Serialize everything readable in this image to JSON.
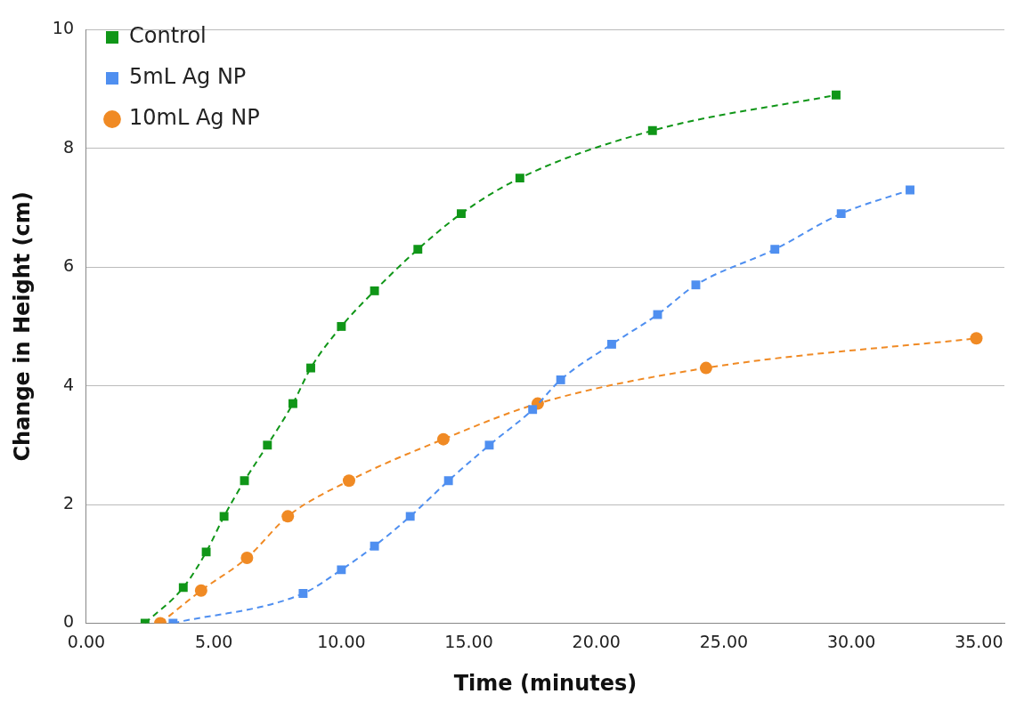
{
  "chart_data": {
    "type": "line",
    "xlabel": "Time (minutes)",
    "ylabel": "Change in Height (cm)",
    "xlim": [
      0,
      36
    ],
    "xticks": [
      {
        "value": 0,
        "label": "0.00"
      },
      {
        "value": 5,
        "label": "5.00"
      },
      {
        "value": 10,
        "label": "10.00"
      },
      {
        "value": 15,
        "label": "15.00"
      },
      {
        "value": 20,
        "label": "20.00"
      },
      {
        "value": 25,
        "label": "25.00"
      },
      {
        "value": 30,
        "label": "30.00"
      },
      {
        "value": 35,
        "label": "35.00"
      }
    ],
    "ylim": [
      0,
      10
    ],
    "yticks": [
      0,
      2,
      4,
      6,
      8,
      10
    ],
    "grid": "y",
    "legend": "top left",
    "line_style": "dashed",
    "series": [
      {
        "name": "Control",
        "color": "#109618",
        "marker": "square",
        "x": [
          2.3,
          3.8,
          4.7,
          5.4,
          6.2,
          7.1,
          8.1,
          8.8,
          10.0,
          11.3,
          13.0,
          14.7,
          17.0,
          22.2,
          29.4
        ],
        "values": [
          0,
          0.6,
          1.2,
          1.8,
          2.4,
          3.0,
          3.7,
          4.3,
          5.0,
          5.6,
          6.3,
          6.9,
          7.5,
          8.3,
          8.9
        ]
      },
      {
        "name": "5mL Ag NP",
        "color": "#4f8ff0",
        "marker": "square",
        "x": [
          3.4,
          8.5,
          10.0,
          11.3,
          12.7,
          14.2,
          15.8,
          17.5,
          18.6,
          20.6,
          22.4,
          23.9,
          27.0,
          29.6,
          32.3
        ],
        "values": [
          0,
          0.5,
          0.9,
          1.3,
          1.8,
          2.4,
          3.0,
          3.6,
          4.1,
          4.7,
          5.2,
          5.7,
          6.3,
          6.9,
          7.3
        ]
      },
      {
        "name": "10mL Ag NP",
        "color": "#f08a24",
        "marker": "circle",
        "x": [
          2.9,
          4.5,
          6.3,
          7.9,
          10.3,
          14.0,
          17.7,
          24.3,
          34.9
        ],
        "values": [
          0,
          0.55,
          1.1,
          1.8,
          2.4,
          3.1,
          3.7,
          4.3,
          4.8
        ]
      }
    ]
  }
}
